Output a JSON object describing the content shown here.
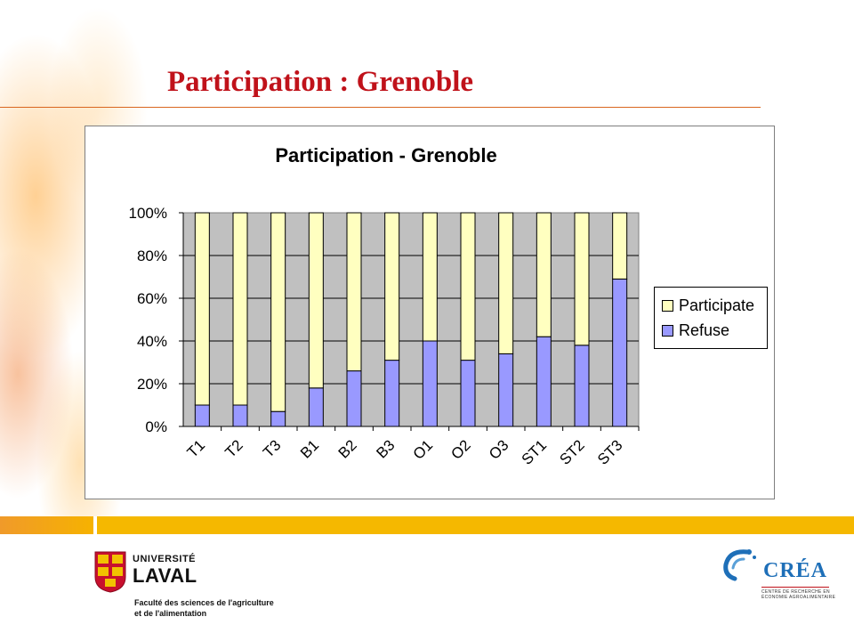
{
  "slide": {
    "title": "Participation : Grenoble"
  },
  "colors": {
    "title": "#c0121a",
    "participate": "#ffffc0",
    "refuse": "#9999ff",
    "plot_area": "#c0c0c0",
    "band": "#f5b800"
  },
  "chart_data": {
    "type": "bar",
    "stacked": true,
    "percent": true,
    "title": "Participation - Grenoble",
    "categories": [
      "T1",
      "T2",
      "T3",
      "B1",
      "B2",
      "B3",
      "O1",
      "O2",
      "O3",
      "ST1",
      "ST2",
      "ST3"
    ],
    "series": [
      {
        "name": "Refuse",
        "color": "#9999ff",
        "values": [
          10,
          10,
          7,
          18,
          26,
          31,
          40,
          31,
          34,
          42,
          38,
          69
        ]
      },
      {
        "name": "Participate",
        "color": "#ffffc0",
        "values": [
          90,
          90,
          93,
          82,
          74,
          69,
          60,
          69,
          66,
          58,
          62,
          31
        ]
      }
    ],
    "ylim": [
      0,
      100
    ],
    "yticks": [
      "0%",
      "20%",
      "40%",
      "60%",
      "80%",
      "100%"
    ],
    "grid": true,
    "legend_position": "right",
    "legend": [
      "Participate",
      "Refuse"
    ]
  },
  "logos": {
    "laval": {
      "line1": "UNIVERSITÉ",
      "line2": "LAVAL",
      "faculty_line1": "Faculté des sciences de l'agriculture",
      "faculty_line2": "et de l'alimentation"
    },
    "crea": {
      "name": "CRÉA",
      "sub_line1": "CENTRE DE RECHERCHE EN",
      "sub_line2": "ÉCONOMIE AGROALIMENTAIRE"
    }
  }
}
